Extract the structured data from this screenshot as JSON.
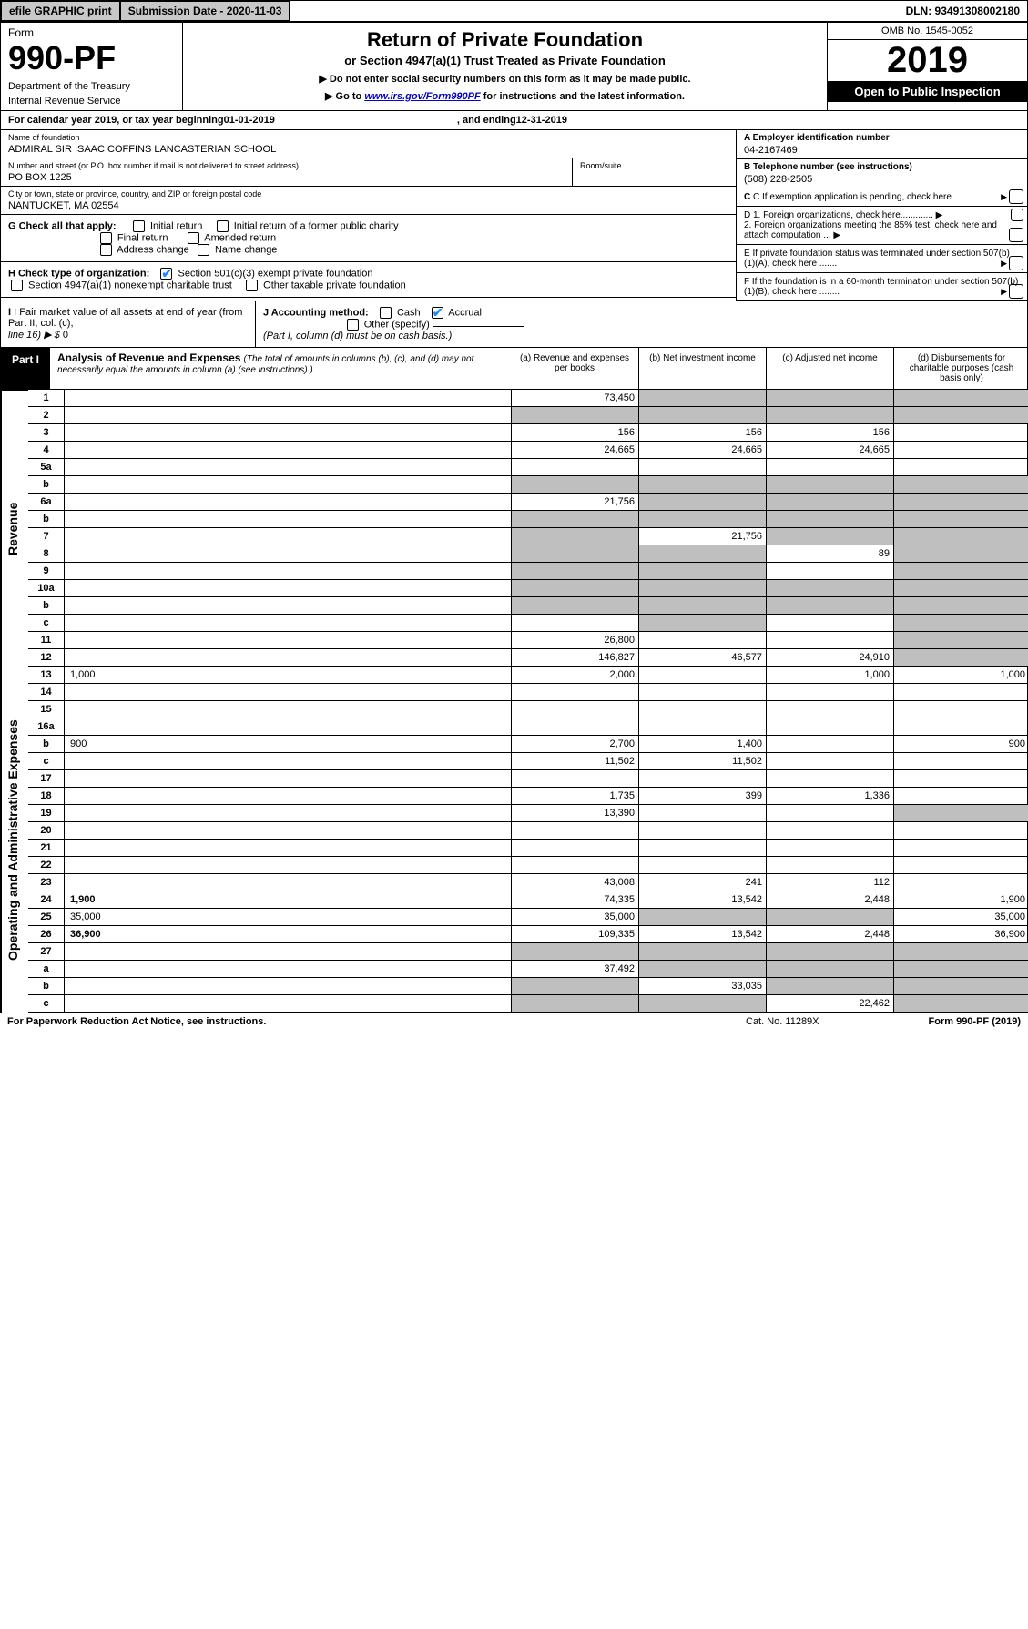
{
  "topbar": {
    "efile": "efile GRAPHIC print",
    "submission": "Submission Date - 2020-11-03",
    "dln": "DLN: 93491308002180"
  },
  "header": {
    "form_label": "Form",
    "form_no": "990-PF",
    "dept1": "Department of the Treasury",
    "dept2": "Internal Revenue Service",
    "title": "Return of Private Foundation",
    "subtitle": "or Section 4947(a)(1) Trust Treated as Private Foundation",
    "note1": "▶ Do not enter social security numbers on this form as it may be made public.",
    "note2_pre": "▶ Go to ",
    "note2_link": "www.irs.gov/Form990PF",
    "note2_post": " for instructions and the latest information.",
    "omb": "OMB No. 1545-0052",
    "year": "2019",
    "open": "Open to Public Inspection"
  },
  "calendar": {
    "pre": "For calendar year 2019, or tax year beginning ",
    "begin": "01-01-2019",
    "mid": ", and ending ",
    "end": "12-31-2019"
  },
  "entity": {
    "name_label": "Name of foundation",
    "name": "ADMIRAL SIR ISAAC COFFINS LANCASTERIAN SCHOOL",
    "addr_label": "Number and street (or P.O. box number if mail is not delivered to street address)",
    "addr": "PO BOX 1225",
    "room_label": "Room/suite",
    "city_label": "City or town, state or province, country, and ZIP or foreign postal code",
    "city": "NANTUCKET, MA  02554",
    "ein_label": "A Employer identification number",
    "ein": "04-2167469",
    "phone_label": "B Telephone number (see instructions)",
    "phone": "(508) 228-2505",
    "c_label": "C If exemption application is pending, check here",
    "d1": "D 1. Foreign organizations, check here.............",
    "d2": "2. Foreign organizations meeting the 85% test, check here and attach computation ...",
    "e_label": "E  If private foundation status was terminated under section 507(b)(1)(A), check here .......",
    "f_label": "F  If the foundation is in a 60-month termination under section 507(b)(1)(B), check here ........"
  },
  "checks": {
    "g_label": "G Check all that apply:",
    "g_initial": "Initial return",
    "g_initial_former": "Initial return of a former public charity",
    "g_final": "Final return",
    "g_amended": "Amended return",
    "g_address": "Address change",
    "g_name": "Name change",
    "h_label": "H Check type of organization:",
    "h_501c3": "Section 501(c)(3) exempt private foundation",
    "h_4947": "Section 4947(a)(1) nonexempt charitable trust",
    "h_other": "Other taxable private foundation",
    "i_label": "I Fair market value of all assets at end of year (from Part II, col. (c),",
    "i_line": "line 16) ▶ $",
    "i_val": "0",
    "j_label": "J Accounting method:",
    "j_cash": "Cash",
    "j_accrual": "Accrual",
    "j_other": "Other (specify)",
    "j_note": "(Part I, column (d) must be on cash basis.)"
  },
  "part1": {
    "tag": "Part I",
    "title": "Analysis of Revenue and Expenses",
    "note": "(The total of amounts in columns (b), (c), and (d) may not necessarily equal the amounts in column (a) (see instructions).)",
    "col_a": "(a)   Revenue and expenses per books",
    "col_b": "(b)  Net investment income",
    "col_c": "(c)  Adjusted net income",
    "col_d": "(d)  Disbursements for charitable purposes (cash basis only)",
    "side_rev": "Revenue",
    "side_exp": "Operating and Administrative Expenses"
  },
  "rows": {
    "r1": {
      "n": "1",
      "d": "",
      "a": "73,450",
      "b": "",
      "c": ""
    },
    "r2": {
      "n": "2",
      "d": "",
      "a": "",
      "b": "",
      "c": ""
    },
    "r3": {
      "n": "3",
      "d": "",
      "a": "156",
      "b": "156",
      "c": "156"
    },
    "r4": {
      "n": "4",
      "d": "",
      "a": "24,665",
      "b": "24,665",
      "c": "24,665"
    },
    "r5a": {
      "n": "5a",
      "d": "",
      "a": "",
      "b": "",
      "c": ""
    },
    "r5b": {
      "n": "b",
      "d": "",
      "a": "",
      "b": "",
      "c": ""
    },
    "r6a": {
      "n": "6a",
      "d": "",
      "a": "21,756",
      "b": "",
      "c": ""
    },
    "r6b": {
      "n": "b",
      "d": "",
      "a": "",
      "b": "",
      "c": ""
    },
    "r7": {
      "n": "7",
      "d": "",
      "a": "",
      "b": "21,756",
      "c": ""
    },
    "r8": {
      "n": "8",
      "d": "",
      "a": "",
      "b": "",
      "c": "89"
    },
    "r9": {
      "n": "9",
      "d": "",
      "a": "",
      "b": "",
      "c": ""
    },
    "r10a": {
      "n": "10a",
      "d": "",
      "a": "",
      "b": "",
      "c": ""
    },
    "r10b": {
      "n": "b",
      "d": "",
      "a": "",
      "b": "",
      "c": ""
    },
    "r10c": {
      "n": "c",
      "d": "",
      "a": "",
      "b": "",
      "c": ""
    },
    "r11": {
      "n": "11",
      "d": "",
      "a": "26,800",
      "b": "",
      "c": ""
    },
    "r12": {
      "n": "12",
      "d": "",
      "a": "146,827",
      "b": "46,577",
      "c": "24,910"
    },
    "r13": {
      "n": "13",
      "d": "1,000",
      "a": "2,000",
      "b": "",
      "c": "1,000"
    },
    "r14": {
      "n": "14",
      "d": "",
      "a": "",
      "b": "",
      "c": ""
    },
    "r15": {
      "n": "15",
      "d": "",
      "a": "",
      "b": "",
      "c": ""
    },
    "r16a": {
      "n": "16a",
      "d": "",
      "a": "",
      "b": "",
      "c": ""
    },
    "r16b": {
      "n": "b",
      "d": "900",
      "a": "2,700",
      "b": "1,400",
      "c": ""
    },
    "r16c": {
      "n": "c",
      "d": "",
      "a": "11,502",
      "b": "11,502",
      "c": ""
    },
    "r17": {
      "n": "17",
      "d": "",
      "a": "",
      "b": "",
      "c": ""
    },
    "r18": {
      "n": "18",
      "d": "",
      "a": "1,735",
      "b": "399",
      "c": "1,336"
    },
    "r19": {
      "n": "19",
      "d": "",
      "a": "13,390",
      "b": "",
      "c": ""
    },
    "r20": {
      "n": "20",
      "d": "",
      "a": "",
      "b": "",
      "c": ""
    },
    "r21": {
      "n": "21",
      "d": "",
      "a": "",
      "b": "",
      "c": ""
    },
    "r22": {
      "n": "22",
      "d": "",
      "a": "",
      "b": "",
      "c": ""
    },
    "r23": {
      "n": "23",
      "d": "",
      "a": "43,008",
      "b": "241",
      "c": "112"
    },
    "r24": {
      "n": "24",
      "d": "1,900",
      "a": "74,335",
      "b": "13,542",
      "c": "2,448"
    },
    "r25": {
      "n": "25",
      "d": "35,000",
      "a": "35,000",
      "b": "",
      "c": ""
    },
    "r26": {
      "n": "26",
      "d": "36,900",
      "a": "109,335",
      "b": "13,542",
      "c": "2,448"
    },
    "r27": {
      "n": "27",
      "d": "",
      "a": "",
      "b": "",
      "c": ""
    },
    "r27a": {
      "n": "a",
      "d": "",
      "a": "37,492",
      "b": "",
      "c": ""
    },
    "r27b": {
      "n": "b",
      "d": "",
      "a": "",
      "b": "33,035",
      "c": ""
    },
    "r27c": {
      "n": "c",
      "d": "",
      "a": "",
      "b": "",
      "c": "22,462"
    }
  },
  "footer": {
    "left": "For Paperwork Reduction Act Notice, see instructions.",
    "mid": "Cat. No. 11289X",
    "right": "Form 990-PF (2019)"
  },
  "greys": {
    "r1": [
      "b",
      "c",
      "d"
    ],
    "r2": [
      "a",
      "b",
      "c",
      "d"
    ],
    "r5b": [
      "a",
      "b",
      "c",
      "d"
    ],
    "r6a": [
      "b",
      "c",
      "d"
    ],
    "r6b": [
      "a",
      "b",
      "c",
      "d"
    ],
    "r7": [
      "a",
      "c",
      "d"
    ],
    "r8": [
      "a",
      "b",
      "d"
    ],
    "r9": [
      "a",
      "b",
      "d"
    ],
    "r10a": [
      "a",
      "b",
      "c",
      "d"
    ],
    "r10b": [
      "a",
      "b",
      "c",
      "d"
    ],
    "r10c": [
      "b",
      "d"
    ],
    "r11": [
      "d"
    ],
    "r12": [
      "d"
    ],
    "r19": [
      "d"
    ],
    "r25": [
      "b",
      "c"
    ],
    "r27": [
      "a",
      "b",
      "c",
      "d"
    ],
    "r27a": [
      "b",
      "c",
      "d"
    ],
    "r27b": [
      "a",
      "c",
      "d"
    ],
    "r27c": [
      "a",
      "b",
      "d"
    ]
  }
}
